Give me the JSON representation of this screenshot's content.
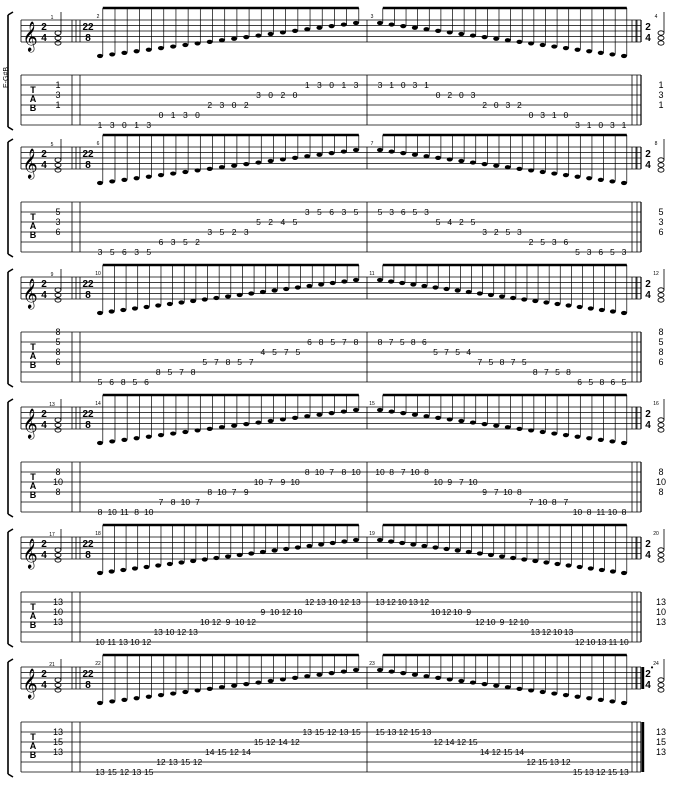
{
  "tuning_label": "E-G#B",
  "tab_letters": [
    "T",
    "A",
    "B"
  ],
  "systems": [
    {
      "meta": "2/4",
      "metaR": "2/4",
      "m1": "1",
      "m2": "2",
      "m3": "3",
      "m4": "4",
      "chord": [
        "1",
        "3",
        "1"
      ],
      "asc": "1 3 0 1 3 0 1 3 0 2 3 0 2 3 0 2 0 1 3 0 1 3",
      "desc": "3 1 0 3 1 0 2 0 3 2 0 3 2 0 3 1 0 3 1 0 3 1"
    },
    {
      "meta": "2/4",
      "metaR": "2/4",
      "m1": "5",
      "m2": "6",
      "m3": "7",
      "m4": "8",
      "chord": [
        "5",
        "3",
        "6"
      ],
      "asc": "3 5 6 3 5 6 3 5 2 3 5 2 3 5 2 4 5 3 5 6 3 5",
      "desc": "5 3 6 5 3 5 4 2 5 3 2 5 3 2 5 3 6 5 3 6 5 3"
    },
    {
      "meta": "2/4",
      "metaR": "2/4",
      "m1": "9",
      "m2": "10",
      "m3": "11",
      "m4": "12",
      "chord": [
        "8",
        "5",
        "8",
        "6"
      ],
      "asc": "5 6 8 5 6 8 5 7 8 5 7 8 5 7 4 5 7 5 6 8 5 7 8",
      "desc": "8 7 5 8 6 5 7 5 4 7 5 8 7 5 8 7 5 8 6 5 8 6 5"
    },
    {
      "meta": "2/4",
      "metaR": "2/4",
      "m1": "13",
      "m2": "14",
      "m3": "15",
      "m4": "16",
      "chord": [
        "8",
        "10",
        "8"
      ],
      "asc": "8 10 11 8 10 7 8 10 7 8 10 7 9 10 7 9 10 8 10 7 8 10",
      "desc": "10 8 7 10 8 10 9 7 10 9 7 10 8 7 10 8 7 10 8 11 10 8"
    },
    {
      "meta": "2/4",
      "metaR": "2/4",
      "m1": "17",
      "m2": "18",
      "m3": "19",
      "m4": "20",
      "chord": [
        "13",
        "10",
        "13"
      ],
      "asc": "10 11 13 10 12 13 10 12 13 10 12 9 10 12 9 10 12 10 12 13 10 12 13",
      "desc": "13 12 10 13 12 10 12 10 9 12 10 9 12 10 13 12 10 13 12 10 13 11 10"
    },
    {
      "meta": "2/4",
      "metaR": "2/4",
      "m1": "21",
      "m2": "22",
      "m3": "23",
      "m4": "24",
      "chord": [
        "13",
        "15",
        "13"
      ],
      "asc": "13 15 12 13 15 12 13 15 12 14 15 12 14 15 12 14 12 13 15 12 13 15",
      "desc": "15 13 12 15 13 12 14 12 15 14 12 15 14 12 15 13 12 15 13 12 15 13"
    }
  ]
}
